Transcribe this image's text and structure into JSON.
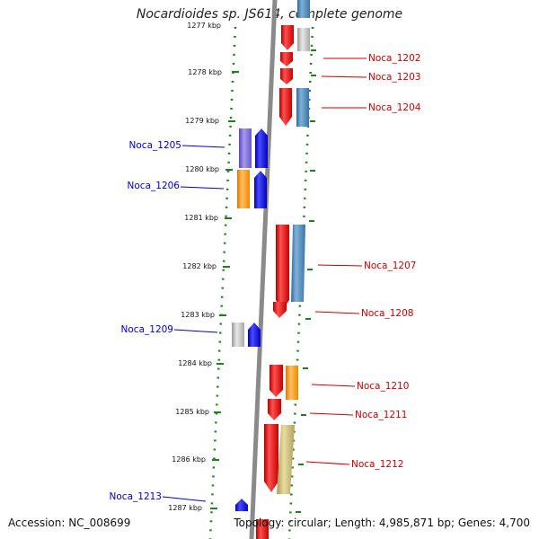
{
  "title": "Nocardioides sp. JS614, complete genome",
  "accession": "Accession: NC_008699",
  "summary": "Topology: circular; Length: 4,985,871 bp; Genes: 4,700",
  "colors": {
    "red": "#ee1111",
    "blue": "#1111ee",
    "steel": "#4682b4",
    "gray": "#b8b8b8",
    "purple": "#7b68d8",
    "orange": "#ff9a1a",
    "khaki": "#c8bb78",
    "backbone": "#8a8a8a",
    "tick_green": "#1f7f1f"
  },
  "ticks": [
    {
      "label": "1277 kbp"
    },
    {
      "label": "1278 kbp"
    },
    {
      "label": "1279 kbp"
    },
    {
      "label": "1280 kbp"
    },
    {
      "label": "1281 kbp"
    },
    {
      "label": "1282 kbp"
    },
    {
      "label": "1283 kbp"
    },
    {
      "label": "1284 kbp"
    },
    {
      "label": "1285 kbp"
    },
    {
      "label": "1286 kbp"
    },
    {
      "label": "1287 kbp"
    }
  ],
  "gene_labels": [
    {
      "id": "Noca_1202",
      "text": "Noca_1202"
    },
    {
      "id": "Noca_1203",
      "text": "Noca_1203"
    },
    {
      "id": "Noca_1204",
      "text": "Noca_1204"
    },
    {
      "id": "Noca_1205",
      "text": "Noca_1205"
    },
    {
      "id": "Noca_1206",
      "text": "Noca_1206"
    },
    {
      "id": "Noca_1207",
      "text": "Noca_1207"
    },
    {
      "id": "Noca_1208",
      "text": "Noca_1208"
    },
    {
      "id": "Noca_1209",
      "text": "Noca_1209"
    },
    {
      "id": "Noca_1210",
      "text": "Noca_1210"
    },
    {
      "id": "Noca_1211",
      "text": "Noca_1211"
    },
    {
      "id": "Noca_1212",
      "text": "Noca_1212"
    },
    {
      "id": "Noca_1213",
      "text": "Noca_1213"
    }
  ]
}
